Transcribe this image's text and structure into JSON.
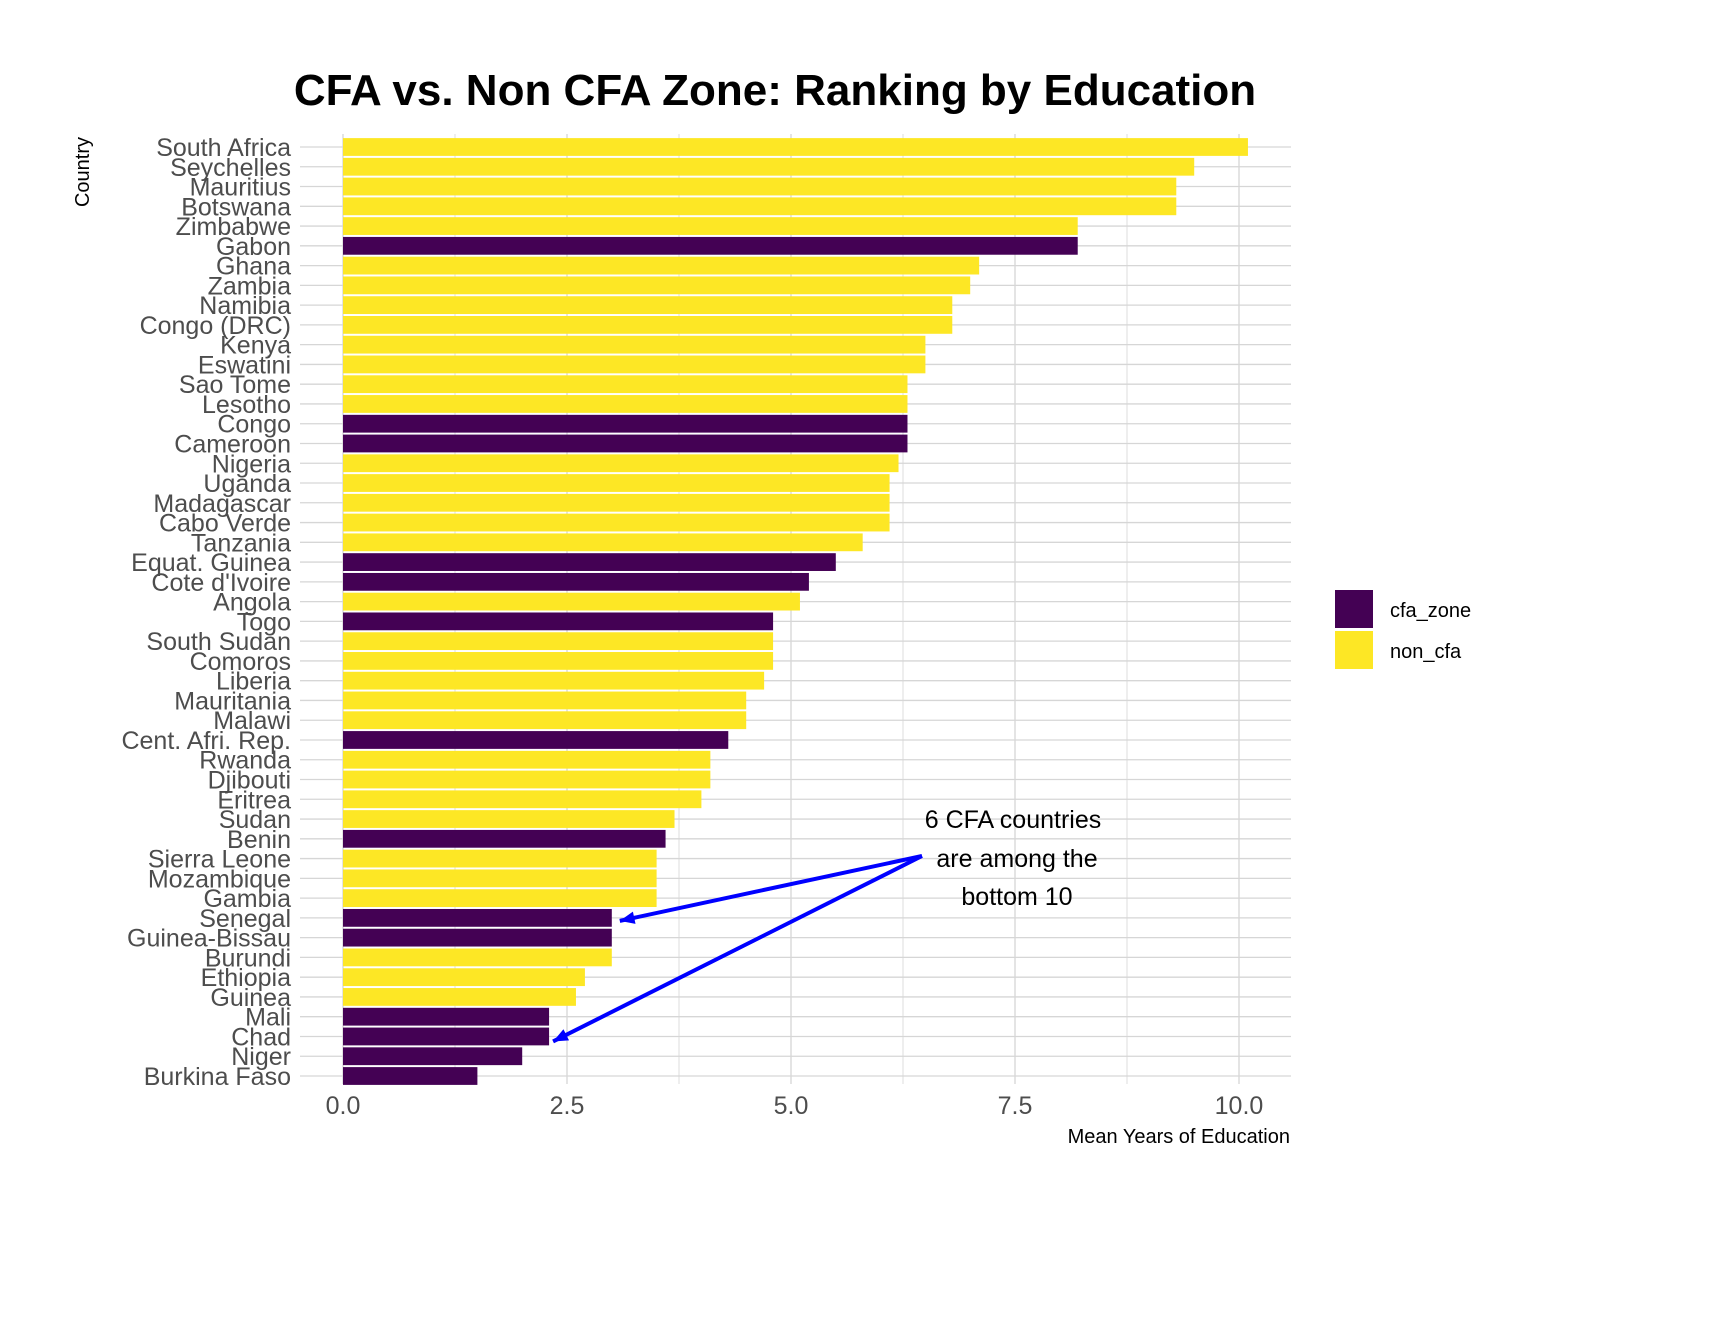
{
  "chart_data": {
    "type": "bar",
    "orientation": "horizontal",
    "title": "CFA vs. Non CFA Zone: Ranking by Education",
    "xlabel": "Mean Years of Education",
    "ylabel": "Country",
    "xlim": [
      0,
      10.6
    ],
    "x_ticks": [
      "0.0",
      "2.5",
      "5.0",
      "7.5",
      "10.0"
    ],
    "grid": true,
    "legend_position": "right",
    "legend": [
      {
        "key": "cfa_zone",
        "label": "cfa_zone",
        "color": "#440154"
      },
      {
        "key": "non_cfa",
        "label": "non_cfa",
        "color": "#FDE725"
      }
    ],
    "categories": [
      "South Africa",
      "Seychelles",
      "Mauritius",
      "Botswana",
      "Zimbabwe",
      "Gabon",
      "Ghana",
      "Zambia",
      "Namibia",
      "Congo (DRC)",
      "Kenya",
      "Eswatini",
      "Sao Tome",
      "Lesotho",
      "Congo",
      "Cameroon",
      "Nigeria",
      "Uganda",
      "Madagascar",
      "Cabo Verde",
      "Tanzania",
      "Equat. Guinea",
      "Cote d'Ivoire",
      "Angola",
      "Togo",
      "South Sudan",
      "Comoros",
      "Liberia",
      "Mauritania",
      "Malawi",
      "Cent. Afri. Rep.",
      "Rwanda",
      "Djibouti",
      "Eritrea",
      "Sudan",
      "Benin",
      "Sierra Leone",
      "Mozambique",
      "Gambia",
      "Senegal",
      "Guinea-Bissau",
      "Burundi",
      "Ethiopia",
      "Guinea",
      "Mali",
      "Chad",
      "Niger",
      "Burkina Faso"
    ],
    "values": [
      10.1,
      9.5,
      9.3,
      9.3,
      8.2,
      8.2,
      7.1,
      7.0,
      6.8,
      6.8,
      6.5,
      6.5,
      6.3,
      6.3,
      6.3,
      6.3,
      6.2,
      6.1,
      6.1,
      6.1,
      5.8,
      5.5,
      5.2,
      5.1,
      4.8,
      4.8,
      4.8,
      4.7,
      4.5,
      4.5,
      4.3,
      4.1,
      4.1,
      4.0,
      3.7,
      3.6,
      3.5,
      3.5,
      3.5,
      3.0,
      3.0,
      3.0,
      2.7,
      2.6,
      2.3,
      2.3,
      2.0,
      1.5
    ],
    "groups": [
      "non_cfa",
      "non_cfa",
      "non_cfa",
      "non_cfa",
      "non_cfa",
      "cfa_zone",
      "non_cfa",
      "non_cfa",
      "non_cfa",
      "non_cfa",
      "non_cfa",
      "non_cfa",
      "non_cfa",
      "non_cfa",
      "cfa_zone",
      "cfa_zone",
      "non_cfa",
      "non_cfa",
      "non_cfa",
      "non_cfa",
      "non_cfa",
      "cfa_zone",
      "cfa_zone",
      "non_cfa",
      "cfa_zone",
      "non_cfa",
      "non_cfa",
      "non_cfa",
      "non_cfa",
      "non_cfa",
      "cfa_zone",
      "non_cfa",
      "non_cfa",
      "non_cfa",
      "non_cfa",
      "cfa_zone",
      "non_cfa",
      "non_cfa",
      "non_cfa",
      "cfa_zone",
      "cfa_zone",
      "non_cfa",
      "non_cfa",
      "non_cfa",
      "cfa_zone",
      "cfa_zone",
      "cfa_zone",
      "cfa_zone"
    ],
    "annotation": {
      "lines": [
        "6 CFA countries",
        "are among the",
        "bottom 10"
      ],
      "arrow_targets": [
        "Senegal",
        "Chad"
      ],
      "arrow_color": "#0000FF"
    }
  }
}
